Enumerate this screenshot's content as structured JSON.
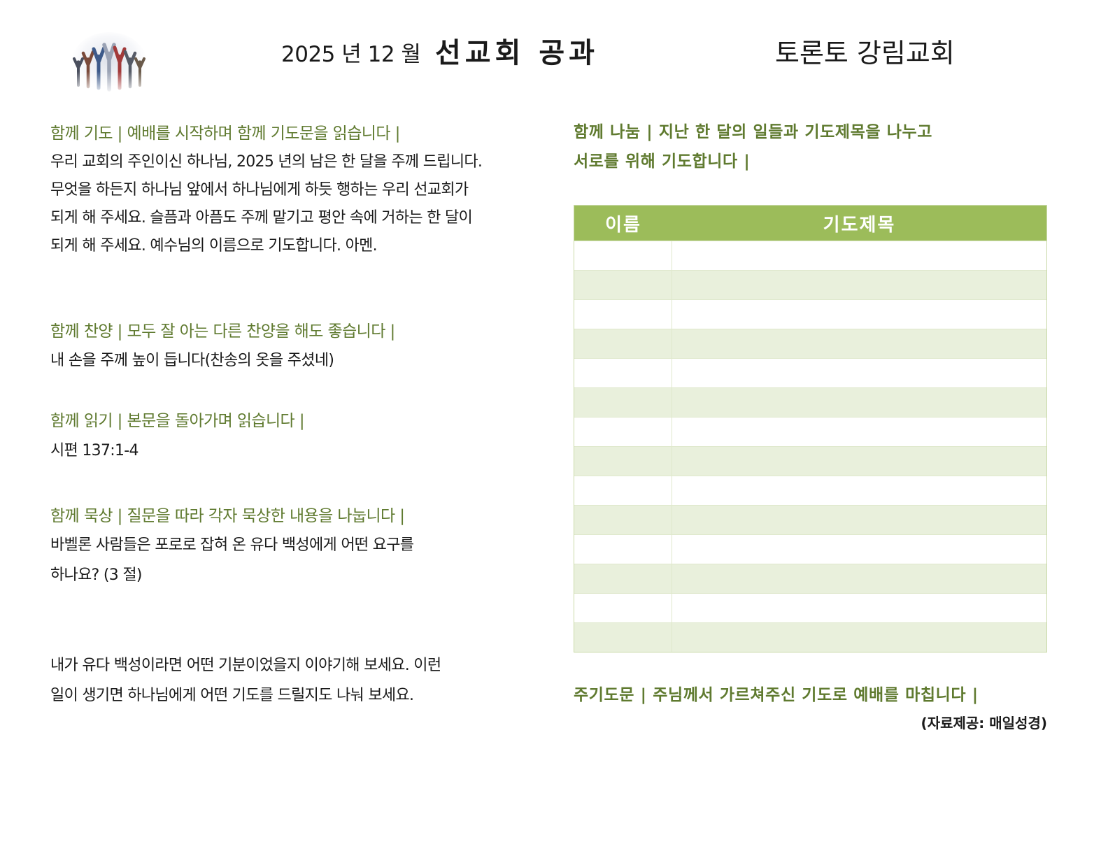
{
  "header": {
    "month": "2025 년 12 월",
    "title": "선교회 공과",
    "church": "토론토 강림교회"
  },
  "prayer": {
    "heading": "함께 기도 | 예배를 시작하며 함께 기도문을 읽습니다 |",
    "lines": [
      "우리 교회의 주인이신 하나님, 2025 년의 남은 한 달을 주께 드립니다.",
      "무엇을 하든지 하나님 앞에서 하나님에게 하듯 행하는 우리 선교회가",
      "되게 해 주세요. 슬픔과 아픔도 주께 맡기고 평안 속에 거하는 한 달이",
      "되게 해 주세요. 예수님의 이름으로 기도합니다. 아멘."
    ]
  },
  "praise": {
    "heading": "함께 찬양 | 모두 잘 아는 다른 찬양을 해도 좋습니다 |",
    "text": "내 손을 주께 높이 듭니다(찬송의 옷을 주셨네)"
  },
  "reading": {
    "heading": "함께 읽기 | 본문을 돌아가며 읽습니다 |",
    "text": "시편 137:1-4"
  },
  "meditation": {
    "heading": "함께 묵상 | 질문을 따라 각자 묵상한 내용을 나눕니다 |",
    "question1": [
      "바벨론 사람들은 포로로 잡혀 온 유다 백성에게 어떤 요구를",
      "하나요? (3 절)"
    ],
    "question2": [
      "내가 유다 백성이라면 어떤 기분이었을지 이야기해 보세요. 이런",
      "일이 생기면 하나님에게 어떤 기도를 드릴지도 나눠 보세요."
    ]
  },
  "sharing": {
    "heading_lines": [
      "함께 나눔 | 지난 한 달의 일들과 기도제목을 나누고",
      "서로를 위해 기도합니다 |"
    ]
  },
  "table": {
    "col_name": "이름",
    "col_prayer": "기도제목",
    "row_count": 14
  },
  "closing": {
    "heading": "주기도문 | 주님께서 가르쳐주신 기도로 예배를 마칩니다 |",
    "source": "(자료제공: 매일성경)"
  },
  "colors": {
    "accent_text": "#5f7a2f",
    "table_header": "#9cbc5a",
    "table_stripe": "#e9f0dc"
  },
  "icons": {
    "logo": "people-raising-hands-icon"
  }
}
